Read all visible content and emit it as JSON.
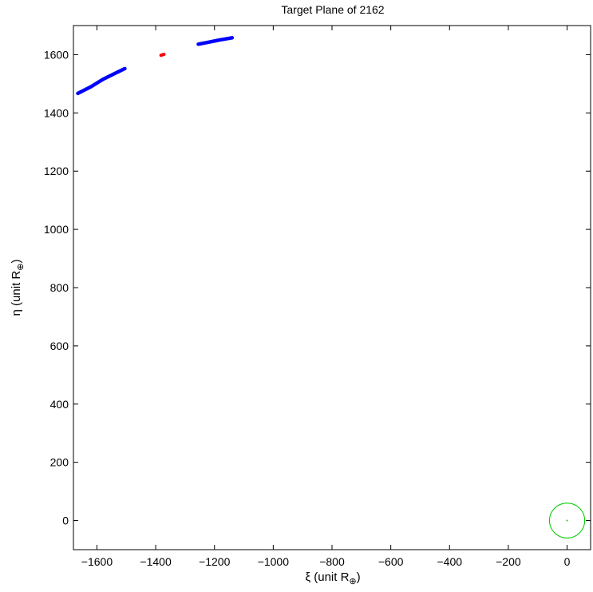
{
  "chart_data": {
    "type": "scatter",
    "title": "Target Plane of 2162",
    "xlabel": {
      "main": "ξ (unit R",
      "sub": "⊕",
      "close": ")"
    },
    "ylabel": {
      "main": "η (unit R",
      "sub": "⊕",
      "close": ")"
    },
    "xlim": [
      -1680,
      80
    ],
    "ylim": [
      -100,
      1700
    ],
    "xticks": [
      -1600,
      -1400,
      -1200,
      -1000,
      -800,
      -600,
      -400,
      -200,
      0
    ],
    "yticks": [
      0,
      200,
      400,
      600,
      800,
      1000,
      1200,
      1400,
      1600
    ],
    "xtick_labels": [
      "−1600",
      "−1400",
      "−1200",
      "−1000",
      "−800",
      "−600",
      "−400",
      "−200",
      "0"
    ],
    "ytick_labels": [
      "0",
      "200",
      "400",
      "600",
      "800",
      "1000",
      "1200",
      "1400",
      "1600"
    ],
    "grid": false,
    "series": [
      {
        "color": "#0000ff",
        "kind": "curve",
        "points": [
          [
            -1665,
            1467
          ],
          [
            -1620,
            1490
          ],
          [
            -1580,
            1515
          ],
          [
            -1540,
            1535
          ],
          [
            -1505,
            1552
          ]
        ]
      },
      {
        "color": "#0000ff",
        "kind": "curve",
        "points": [
          [
            -1255,
            1636
          ],
          [
            -1220,
            1643
          ],
          [
            -1185,
            1650
          ],
          [
            -1140,
            1658
          ]
        ]
      },
      {
        "color": "#ff0000",
        "kind": "curve",
        "points": [
          [
            -1382,
            1598
          ],
          [
            -1372,
            1601
          ]
        ]
      },
      {
        "color": "#00cc00",
        "kind": "circle",
        "center": [
          0,
          0
        ],
        "radius": 60
      },
      {
        "color": "#00cc00",
        "kind": "point",
        "points": [
          [
            0,
            0
          ]
        ]
      }
    ]
  }
}
